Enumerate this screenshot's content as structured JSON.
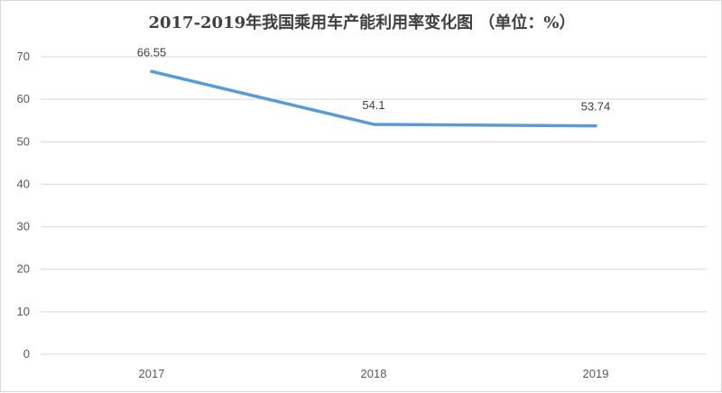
{
  "chart_data": {
    "type": "line",
    "title": "2017-2019年我国乘用车产能利用率变化图 （单位：%）",
    "categories": [
      "2017",
      "2018",
      "2019"
    ],
    "series": [
      {
        "values": [
          66.55,
          54.1,
          53.74
        ],
        "data_labels": [
          "66.55",
          "54.1",
          "53.74"
        ]
      }
    ],
    "ylim": [
      0,
      70
    ],
    "yticks": [
      0,
      10,
      20,
      30,
      40,
      50,
      60,
      70
    ],
    "grid": true,
    "line_color": "#5b9bd5",
    "legend": "none"
  }
}
